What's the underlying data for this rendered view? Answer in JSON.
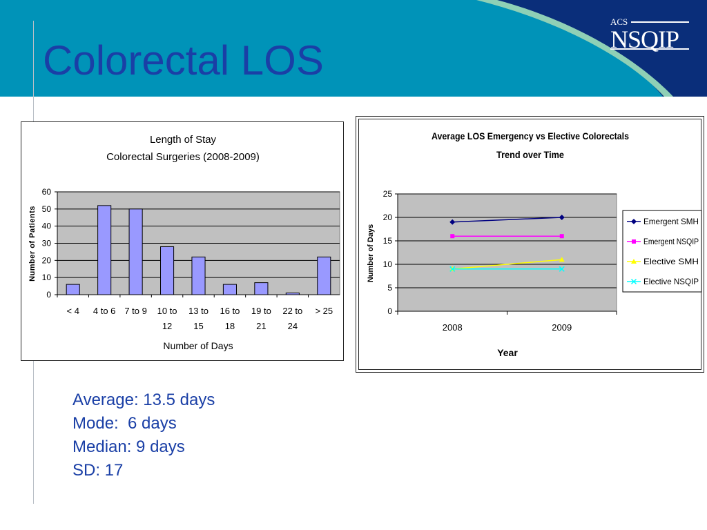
{
  "slide": {
    "title": "Colorectal LOS",
    "logo": {
      "acs": "ACS",
      "name": "NSQIP"
    },
    "header_color": "#0093b8",
    "header_dark_color": "#0a2e7a",
    "header_light_color": "#8fd0b6",
    "title_color": "#1a3fa6"
  },
  "stats": [
    "Average: 13.5 days",
    "Mode:  6 days",
    "Median: 9 days",
    "SD: 17"
  ],
  "chart_data": [
    {
      "type": "bar",
      "title": "Length of Stay",
      "subtitle": "Colorectal Surgeries (2008-2009)",
      "xlabel": "Number of Days",
      "ylabel": "Number of Patients",
      "categories": [
        "< 4",
        "4 to 6",
        "7 to 9",
        "10 to\n12",
        "13 to\n15",
        "16 to\n18",
        "19 to\n21",
        "22 to\n24",
        "> 25"
      ],
      "values": [
        6,
        52,
        50,
        28,
        22,
        6,
        7,
        1,
        22
      ],
      "ylim": [
        0,
        60
      ],
      "yticks": [
        0,
        10,
        20,
        30,
        40,
        50,
        60
      ],
      "grid": true,
      "legend": "none",
      "bar_color": "#9999ff",
      "plot_bg": "#c0c0c0"
    },
    {
      "type": "line",
      "title": "Average LOS Emergency vs Elective Colorectals",
      "subtitle": "Trend over Time",
      "xlabel": "Year",
      "ylabel": "Number of Days",
      "categories": [
        "2008",
        "2009"
      ],
      "ylim": [
        0,
        25
      ],
      "yticks": [
        0,
        5,
        10,
        15,
        20,
        25
      ],
      "grid": true,
      "legend": "right",
      "plot_bg": "#c0c0c0",
      "series": [
        {
          "name": "Emergent SMH",
          "values": [
            19,
            20
          ],
          "color": "#000080",
          "marker": "diamond"
        },
        {
          "name": "Emergent NSQIP",
          "values": [
            16,
            16
          ],
          "color": "#ff00ff",
          "marker": "square"
        },
        {
          "name": "Elective SMH",
          "values": [
            9,
            11
          ],
          "color": "#ffff00",
          "marker": "triangle"
        },
        {
          "name": "Elective NSQIP",
          "values": [
            9,
            9
          ],
          "color": "#00ffff",
          "marker": "x"
        }
      ]
    }
  ]
}
